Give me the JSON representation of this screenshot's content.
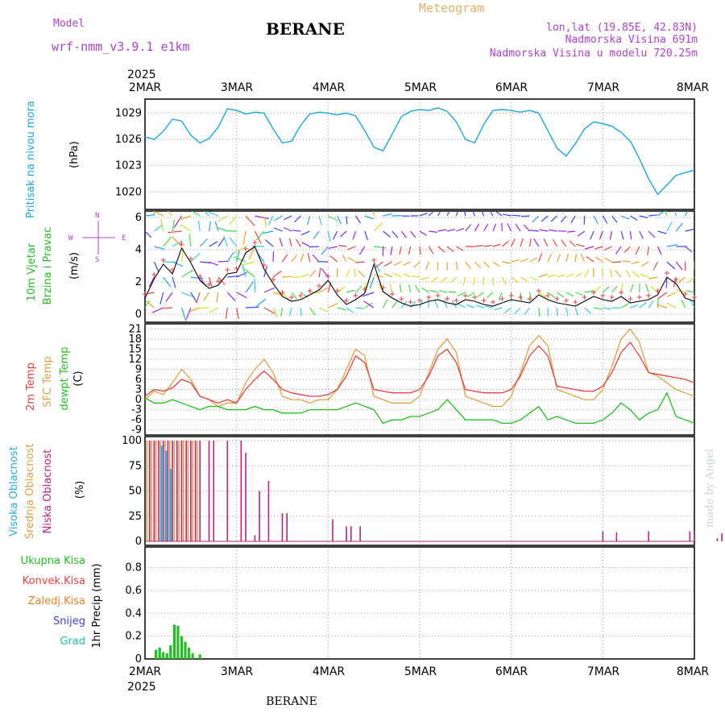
{
  "header": {
    "model_label": "Model",
    "model_name": "wrf-nmm_v3.9.1 e1km",
    "location": "BERANE",
    "meteogram_label": "Meteogram",
    "lonlat": "lon,lat (19.85E, 42.83N)",
    "altitude": "Nadmorska Visina 691m",
    "altitude_model": "Nadmorska Visina u modelu 720.25m",
    "footer_location": "BERANE",
    "watermark": "made by Angel"
  },
  "colors": {
    "pressure": "#1aa7e6",
    "model": "#b040d0",
    "meteogram": "#e8b060",
    "temp2m": "#e84040",
    "sfc_temp": "#e0a040",
    "dewpoint": "#20c020",
    "cloud_high": "#20b0e0",
    "cloud_mid": "#e0a040",
    "cloud_low": "#c0207a",
    "precip_total": "#20c020",
    "precip_conv": "#e84040",
    "precip_frozen": "#f08020",
    "precip_snow": "#4040e0",
    "precip_grad": "#20c0b0",
    "wind_label": "#20c020",
    "compass": "#b040d0"
  },
  "chart_data": [
    {
      "type": "line",
      "panel": "pressure",
      "x_axis": {
        "year": "2025",
        "ticks": [
          "2MAR",
          "3MAR",
          "4MAR",
          "5MAR",
          "6MAR",
          "7MAR",
          "8MAR"
        ]
      },
      "ylabel_name": "Pritisak na nivou mora",
      "ylabel_unit": "(hPa)",
      "yticks": [
        "1020",
        "1023",
        "1026",
        "1029"
      ],
      "ylim": [
        1018.0,
        1030.6
      ],
      "grid": true,
      "series": [
        {
          "x": [
            0,
            0.1,
            0.2,
            0.3,
            0.4,
            0.5,
            0.6,
            0.7,
            0.8,
            0.9,
            1.0,
            1.1,
            1.2,
            1.3,
            1.4,
            1.5,
            1.6,
            1.7,
            1.8,
            1.9,
            2.0,
            2.1,
            2.2,
            2.3,
            2.4,
            2.5,
            2.6,
            2.7,
            2.8,
            2.9,
            3.0,
            3.1,
            3.2,
            3.3,
            3.4,
            3.5,
            3.6,
            3.7,
            3.8,
            3.9,
            4.0,
            4.1,
            4.2,
            4.3,
            4.4,
            4.5,
            4.6,
            4.7,
            4.8,
            4.9,
            5.0,
            5.1,
            5.2,
            5.3,
            5.4,
            5.5,
            5.6,
            5.7,
            5.8,
            5.9,
            6.0
          ],
          "y": [
            1026.3,
            1026.0,
            1026.9,
            1028.3,
            1028.1,
            1026.5,
            1025.6,
            1026.1,
            1027.4,
            1029.5,
            1029.3,
            1028.9,
            1029.1,
            1029.0,
            1027.2,
            1025.6,
            1025.8,
            1027.6,
            1028.9,
            1029.1,
            1029.0,
            1028.8,
            1029.0,
            1028.7,
            1027.0,
            1025.1,
            1024.7,
            1026.6,
            1028.6,
            1029.2,
            1029.4,
            1029.3,
            1029.6,
            1029.2,
            1028.0,
            1026.0,
            1025.6,
            1027.7,
            1029.3,
            1029.4,
            1029.3,
            1029.1,
            1029.3,
            1029.0,
            1027.0,
            1025.0,
            1024.1,
            1025.5,
            1027.2,
            1028.0,
            1027.8,
            1027.5,
            1026.8,
            1025.8,
            1023.8,
            1021.5,
            1019.7,
            1020.8,
            1021.9,
            1022.2,
            1022.5
          ]
        }
      ]
    },
    {
      "type": "line",
      "panel": "wind",
      "ylabel_name": "10m Vjetar",
      "ylabel_name2": "Brzina i Pravac",
      "ylabel_unit": "(m/s)",
      "yticks": [
        "0",
        "2",
        "4",
        "6"
      ],
      "ylim": [
        -0.5,
        6.4
      ],
      "compass": {
        "n": "N",
        "e": "E",
        "s": "S",
        "w": "W"
      },
      "series": [
        {
          "name": "speed",
          "x": [
            0,
            0.1,
            0.2,
            0.3,
            0.4,
            0.5,
            0.6,
            0.7,
            0.8,
            0.9,
            1.0,
            1.1,
            1.2,
            1.3,
            1.4,
            1.5,
            1.6,
            1.7,
            1.8,
            1.9,
            2.0,
            2.1,
            2.2,
            2.3,
            2.4,
            2.5,
            2.6,
            2.7,
            2.8,
            2.9,
            3.0,
            3.1,
            3.2,
            3.3,
            3.4,
            3.5,
            3.6,
            3.7,
            3.8,
            3.9,
            4.0,
            4.1,
            4.2,
            4.3,
            4.4,
            4.5,
            4.6,
            4.7,
            4.8,
            4.9,
            5.0,
            5.1,
            5.2,
            5.3,
            5.4,
            5.5,
            5.6,
            5.7,
            5.8,
            5.9,
            6.0
          ],
          "y": [
            1.0,
            2.2,
            3.1,
            2.5,
            4.1,
            3.2,
            2.1,
            1.6,
            1.8,
            2.5,
            2.6,
            3.8,
            4.2,
            2.8,
            1.9,
            1.1,
            0.8,
            0.9,
            1.2,
            1.5,
            2.1,
            1.2,
            0.6,
            0.9,
            1.3,
            3.1,
            1.4,
            1.0,
            0.7,
            0.5,
            0.6,
            0.8,
            0.9,
            0.7,
            0.6,
            0.9,
            0.8,
            0.6,
            0.5,
            0.7,
            0.9,
            0.8,
            0.7,
            1.2,
            0.9,
            0.7,
            0.6,
            0.5,
            0.8,
            1.1,
            0.9,
            0.8,
            1.1,
            0.7,
            0.8,
            0.9,
            1.2,
            2.3,
            1.9,
            1.0,
            0.8
          ]
        }
      ]
    },
    {
      "type": "line",
      "panel": "temperature",
      "ylabel_t2m": "2m Temp",
      "ylabel_sfc": "SFC Temp",
      "ylabel_dew": "dewpt Temp",
      "ylabel_unit": "(C)",
      "yticks": [
        "-9",
        "-6",
        "-3",
        "0",
        "3",
        "6",
        "9",
        "12",
        "15",
        "18",
        "21"
      ],
      "ylim": [
        -10.5,
        22.5
      ],
      "series": [
        {
          "name": "2m Temp",
          "x": [
            0,
            0.1,
            0.2,
            0.3,
            0.4,
            0.5,
            0.6,
            0.7,
            0.8,
            0.9,
            1.0,
            1.1,
            1.2,
            1.3,
            1.4,
            1.5,
            1.6,
            1.7,
            1.8,
            1.9,
            2.0,
            2.1,
            2.2,
            2.3,
            2.4,
            2.5,
            2.6,
            2.7,
            2.8,
            2.9,
            3.0,
            3.1,
            3.2,
            3.3,
            3.4,
            3.5,
            3.6,
            3.7,
            3.8,
            3.9,
            4.0,
            4.1,
            4.2,
            4.3,
            4.4,
            4.5,
            4.6,
            4.7,
            4.8,
            4.9,
            5.0,
            5.1,
            5.2,
            5.3,
            5.4,
            5.5,
            5.6,
            5.7,
            5.8,
            5.9,
            6.0
          ],
          "y": [
            1,
            3,
            2.5,
            3.5,
            6,
            5,
            1,
            0,
            -1,
            0,
            -1,
            3,
            6,
            8.5,
            6,
            3,
            2,
            1.5,
            1,
            1,
            1.5,
            3,
            7,
            13,
            11,
            3,
            2.5,
            2,
            2,
            2,
            3,
            7,
            13,
            15,
            11,
            3,
            2.5,
            2,
            2,
            2,
            3,
            7,
            13,
            16,
            13,
            4,
            3.5,
            3,
            2.5,
            2.5,
            4,
            8,
            14,
            17,
            13,
            8,
            7.5,
            7,
            6.5,
            6,
            5
          ]
        },
        {
          "name": "SFC Temp",
          "x": [
            0,
            0.1,
            0.2,
            0.3,
            0.4,
            0.5,
            0.6,
            0.7,
            0.8,
            0.9,
            1.0,
            1.1,
            1.2,
            1.3,
            1.4,
            1.5,
            1.6,
            1.7,
            1.8,
            1.9,
            2.0,
            2.1,
            2.2,
            2.3,
            2.4,
            2.5,
            2.6,
            2.7,
            2.8,
            2.9,
            3.0,
            3.1,
            3.2,
            3.3,
            3.4,
            3.5,
            3.6,
            3.7,
            3.8,
            3.9,
            4.0,
            4.1,
            4.2,
            4.3,
            4.4,
            4.5,
            4.6,
            4.7,
            4.8,
            4.9,
            5.0,
            5.1,
            5.2,
            5.3,
            5.4,
            5.5,
            5.6,
            5.7,
            5.8,
            5.9,
            6.0
          ],
          "y": [
            0,
            2.5,
            1.5,
            5,
            9,
            6,
            1,
            0,
            -2,
            -1,
            -1,
            5,
            9,
            12,
            8,
            1,
            0,
            0,
            -1,
            0,
            0,
            3,
            9,
            15,
            13,
            1,
            0,
            -1,
            -1,
            -1,
            1,
            8,
            15,
            18,
            14,
            1,
            0,
            -1,
            -2,
            -2,
            1,
            8,
            16,
            19,
            16,
            3,
            2,
            1,
            0,
            0,
            3,
            10,
            18,
            21,
            17,
            8,
            7,
            5,
            3,
            2,
            1
          ]
        },
        {
          "name": "dewpt Temp",
          "x": [
            0,
            0.1,
            0.2,
            0.3,
            0.4,
            0.5,
            0.6,
            0.7,
            0.8,
            0.9,
            1.0,
            1.1,
            1.2,
            1.3,
            1.4,
            1.5,
            1.6,
            1.7,
            1.8,
            1.9,
            2.0,
            2.1,
            2.2,
            2.3,
            2.4,
            2.5,
            2.6,
            2.7,
            2.8,
            2.9,
            3.0,
            3.1,
            3.2,
            3.3,
            3.4,
            3.5,
            3.6,
            3.7,
            3.8,
            3.9,
            4.0,
            4.1,
            4.2,
            4.3,
            4.4,
            4.5,
            4.6,
            4.7,
            4.8,
            4.9,
            5.0,
            5.1,
            5.2,
            5.3,
            5.4,
            5.5,
            5.6,
            5.7,
            5.8,
            5.9,
            6.0
          ],
          "y": [
            0.5,
            -1,
            -1,
            0,
            -1,
            -2,
            -3,
            -2,
            -2,
            -3,
            -3,
            -3,
            -2,
            -3,
            -3,
            -4,
            -4,
            -4,
            -3,
            -3,
            -3,
            -3,
            -2,
            -1,
            -2,
            -3,
            -7,
            -6,
            -6,
            -5,
            -5,
            -4,
            -3,
            0,
            -3,
            -6,
            -6,
            -6,
            -6,
            -7,
            -7,
            -6,
            -4,
            -2,
            -6,
            -5,
            -6,
            -7,
            -7,
            -7,
            -6,
            -4,
            -1,
            -3,
            -6,
            -4,
            -3,
            2,
            -5,
            -6,
            -7
          ]
        }
      ]
    },
    {
      "type": "bar",
      "panel": "clouds",
      "ylabel_high": "Visoka Oblacnost",
      "ylabel_mid": "Srednja Oblacnost",
      "ylabel_low": "Niska Oblacnost",
      "ylabel_unit": "(%)",
      "yticks": [
        "0",
        "25",
        "50",
        "75",
        "100"
      ],
      "ylim": [
        -4,
        104
      ],
      "series": [
        {
          "name": "Niska Oblacnost",
          "x": [
            0.05,
            0.1,
            0.15,
            0.2,
            0.25,
            0.3,
            0.35,
            0.4,
            0.45,
            0.5,
            0.55,
            0.6,
            0.7,
            0.75,
            0.9,
            1.05,
            1.1,
            1.2,
            1.25,
            1.35,
            1.5,
            1.55,
            2.05,
            2.2,
            2.25,
            2.35,
            5.0,
            5.15,
            5.5,
            5.95,
            6.0,
            6.25,
            6.3,
            6.5
          ],
          "y": [
            100,
            100,
            100,
            100,
            100,
            100,
            100,
            100,
            100,
            100,
            100,
            100,
            100,
            100,
            100,
            100,
            88,
            6,
            50,
            60,
            28,
            28,
            22,
            15,
            15,
            15,
            10,
            9,
            10,
            10,
            10,
            3,
            8,
            10
          ]
        },
        {
          "name": "Srednja Oblacnost",
          "x": [
            0.02,
            0.07,
            0.12,
            0.17,
            0.22,
            0.27,
            0.32,
            0.37,
            0.42,
            0.47,
            0.52,
            0.57
          ],
          "y": [
            100,
            100,
            100,
            100,
            100,
            100,
            100,
            100,
            100,
            100,
            100,
            100
          ]
        },
        {
          "name": "Visoka Oblacnost",
          "x": [
            0.18,
            0.23,
            0.28
          ],
          "y": [
            95,
            90,
            72
          ]
        }
      ]
    },
    {
      "type": "bar",
      "panel": "precip",
      "ylabel_unit": "1hr Precip (mm)",
      "legend": [
        "Ukupna Kisa",
        "Konvek.Kisa",
        "Zaledj.Kisa",
        "Snijeg",
        "Grad"
      ],
      "yticks": [
        "0",
        "0.2",
        "0.4",
        "0.6",
        "0.8"
      ],
      "ylim": [
        0,
        0.98
      ],
      "series": [
        {
          "name": "Ukupna Kisa",
          "x": [
            0.12,
            0.16,
            0.2,
            0.24,
            0.28,
            0.32,
            0.36,
            0.4,
            0.44,
            0.48,
            0.52,
            0.6
          ],
          "y": [
            0.08,
            0.1,
            0.06,
            0.05,
            0.12,
            0.3,
            0.29,
            0.2,
            0.15,
            0.1,
            0.05,
            0.04
          ]
        }
      ]
    }
  ]
}
